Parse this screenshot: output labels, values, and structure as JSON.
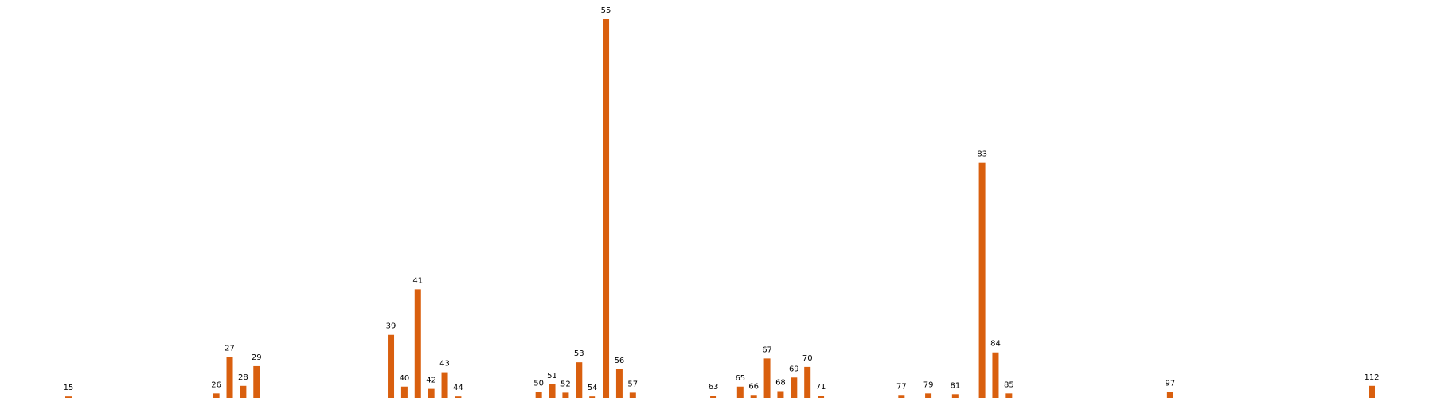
{
  "chart_data": {
    "type": "bar",
    "title": "",
    "xlabel": "",
    "ylabel": "",
    "xlim": [
      10,
      116
    ],
    "ylim": [
      0,
      100
    ],
    "grid": false,
    "axes_visible": false,
    "bar_color": "#D95F0E",
    "points": [
      {
        "x": 15,
        "label": "15",
        "value": 0.8
      },
      {
        "x": 26,
        "label": "26",
        "value": 1.6
      },
      {
        "x": 27,
        "label": "27",
        "value": 11.2
      },
      {
        "x": 28,
        "label": "28",
        "value": 3.6
      },
      {
        "x": 29,
        "label": "29",
        "value": 8.8
      },
      {
        "x": 39,
        "label": "39",
        "value": 17.0
      },
      {
        "x": 40,
        "label": "40",
        "value": 3.4
      },
      {
        "x": 41,
        "label": "41",
        "value": 29.0
      },
      {
        "x": 42,
        "label": "42",
        "value": 2.8
      },
      {
        "x": 43,
        "label": "43",
        "value": 7.2
      },
      {
        "x": 44,
        "label": "44",
        "value": 0.8
      },
      {
        "x": 50,
        "label": "50",
        "value": 2.0
      },
      {
        "x": 51,
        "label": "51",
        "value": 4.0
      },
      {
        "x": 52,
        "label": "52",
        "value": 1.8
      },
      {
        "x": 53,
        "label": "53",
        "value": 9.8
      },
      {
        "x": 54,
        "label": "54",
        "value": 0.8
      },
      {
        "x": 55,
        "label": "55",
        "value": 100
      },
      {
        "x": 56,
        "label": "56",
        "value": 8.0
      },
      {
        "x": 57,
        "label": "57",
        "value": 1.8
      },
      {
        "x": 63,
        "label": "63",
        "value": 1.0
      },
      {
        "x": 65,
        "label": "65",
        "value": 3.4
      },
      {
        "x": 66,
        "label": "66",
        "value": 1.2
      },
      {
        "x": 67,
        "label": "67",
        "value": 10.8
      },
      {
        "x": 68,
        "label": "68",
        "value": 2.2
      },
      {
        "x": 69,
        "label": "69",
        "value": 5.8
      },
      {
        "x": 70,
        "label": "70",
        "value": 8.6
      },
      {
        "x": 71,
        "label": "71",
        "value": 1.0
      },
      {
        "x": 77,
        "label": "77",
        "value": 1.2
      },
      {
        "x": 79,
        "label": "79",
        "value": 1.6
      },
      {
        "x": 81,
        "label": "81",
        "value": 1.4
      },
      {
        "x": 83,
        "label": "83",
        "value": 62.2
      },
      {
        "x": 84,
        "label": "84",
        "value": 12.4
      },
      {
        "x": 85,
        "label": "85",
        "value": 1.6
      },
      {
        "x": 97,
        "label": "97",
        "value": 2.0
      },
      {
        "x": 112,
        "label": "112",
        "value": 3.6
      }
    ]
  }
}
